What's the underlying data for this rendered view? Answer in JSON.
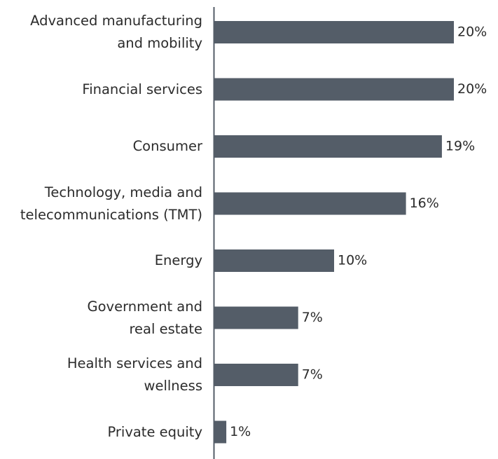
{
  "chart_data": {
    "type": "barh",
    "categories": [
      "Advanced manufacturing\nand mobility",
      "Financial services",
      "Consumer",
      "Technology, media and\ntelecommunications (TMT)",
      "Energy",
      "Government and\nreal estate",
      "Health services and\nwellness",
      "Private equity"
    ],
    "values": [
      20,
      20,
      19,
      16,
      10,
      7,
      7,
      1
    ],
    "value_labels": [
      "20%",
      "20%",
      "19%",
      "16%",
      "10%",
      "7%",
      "7%",
      "1%"
    ],
    "color": "#545d68"
  }
}
